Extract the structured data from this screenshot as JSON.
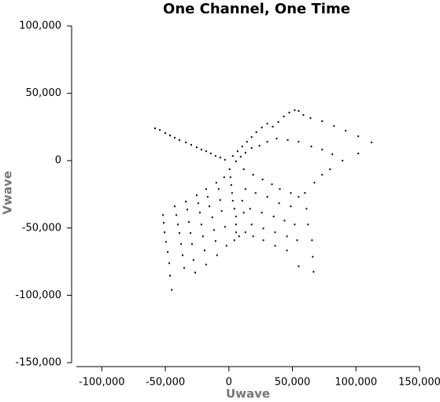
{
  "chart_data": {
    "type": "scatter",
    "title": "One Channel, One Time",
    "x_label": "Uwave",
    "y_label": "Vwave",
    "color": "#000000",
    "xlim": [
      -120000,
      150000
    ],
    "ylim": [
      -150000,
      100000
    ],
    "xticks": [
      {
        "value": -100000,
        "label": "-100,000"
      },
      {
        "value": -50000,
        "label": "-50,000"
      },
      0,
      {
        "value": 50000,
        "label": "50,000"
      },
      {
        "value": 100000,
        "label": "100,000"
      },
      {
        "value": 150000,
        "label": "150,000"
      }
    ],
    "yticks": [
      {
        "value": -150000,
        "label": "-150,000"
      },
      {
        "value": -100000,
        "label": "-100,000"
      },
      {
        "value": -50000,
        "label": "-50,000"
      },
      0,
      {
        "value": 50000,
        "label": "50,000"
      },
      {
        "value": 100000,
        "label": "100,000"
      }
    ],
    "x": [
      -58000,
      -54300,
      -50000,
      -46300,
      -42600,
      -38900,
      -33900,
      -29600,
      -25300,
      -21600,
      -17900,
      -14200,
      -10500,
      -6800,
      -3100,
      3100,
      6800,
      10500,
      14200,
      17900,
      21600,
      25900,
      30200,
      34500,
      38900,
      43200,
      47500,
      51800,
      54900,
      58600,
      64200,
      73400,
      82700,
      91900,
      101800,
      112300,
      5600,
      9300,
      13000,
      17900,
      24100,
      30200,
      37600,
      46300,
      54900,
      64800,
      73400,
      81400,
      89400,
      101800,
      600,
      1200,
      1900,
      2500,
      3100,
      4300,
      5600,
      5600,
      5600,
      4300,
      8000,
      13000,
      19100,
      27100,
      36400,
      45700,
      54900,
      66000,
      65400,
      62300,
      61100,
      59800,
      67300,
      73400,
      79600,
      66600,
      11700,
      19100,
      26500,
      33900,
      40100,
      48700,
      54900,
      13000,
      21000,
      30200,
      39500,
      48700,
      16700,
      25900,
      35200,
      43800,
      51800,
      17900,
      27100,
      36400,
      45700,
      53700,
      11700,
      10500,
      -51800,
      -51200,
      -50600,
      -49400,
      -48100,
      -46900,
      -46300,
      -45000,
      -42600,
      -41300,
      -40100,
      -38900,
      -37600,
      -36400,
      -35200,
      -33900,
      -32700,
      -31500,
      -30200,
      -29000,
      -27800,
      -26500,
      -25300,
      -24100,
      -22800,
      -21600,
      -20400,
      -19100,
      -17900,
      -17900,
      -16700,
      -15400,
      -13000,
      -11700,
      -10500,
      -9300,
      -9900,
      -8000,
      -6800,
      -5600,
      -3100,
      -1900,
      -3700
    ],
    "values": [
      24000,
      22800,
      20500,
      18700,
      17000,
      15200,
      13500,
      11700,
      9900,
      8200,
      7000,
      5300,
      3500,
      2300,
      600,
      3500,
      7000,
      10500,
      14000,
      17500,
      21100,
      24600,
      27500,
      25200,
      28700,
      32800,
      35700,
      37400,
      36900,
      33900,
      31600,
      29300,
      25700,
      22200,
      18100,
      13500,
      -600,
      2900,
      5900,
      9400,
      11100,
      14000,
      16400,
      15200,
      14000,
      10500,
      8200,
      4700,
      0,
      5300,
      -6400,
      -12300,
      -18100,
      -24000,
      -29800,
      -35700,
      -41500,
      -47400,
      -53200,
      -59100,
      -56200,
      -53200,
      -56200,
      -59100,
      -63200,
      -66700,
      -78400,
      -71400,
      -59100,
      -47400,
      -35700,
      -24000,
      -16400,
      -10500,
      -6400,
      -82500,
      -6400,
      -10500,
      -14000,
      -17600,
      -21100,
      -24000,
      -26900,
      -21100,
      -24000,
      -26900,
      -31600,
      -33900,
      -35700,
      -38600,
      -41500,
      -44500,
      -47400,
      -47400,
      -50300,
      -53200,
      -56200,
      -59100,
      -38600,
      -29800,
      -40400,
      -46200,
      -53200,
      -60300,
      -67900,
      -76100,
      -85400,
      -95900,
      -33900,
      -40400,
      -47400,
      -53800,
      -62000,
      -70200,
      -79600,
      -30400,
      -36300,
      -45600,
      -53800,
      -62000,
      -73700,
      -83100,
      -25700,
      -31600,
      -38600,
      -47400,
      -56200,
      -66700,
      -77200,
      -21100,
      -26900,
      -33900,
      -42100,
      -51500,
      -59700,
      -70200,
      -16400,
      -21100,
      -29300,
      -37400,
      -49100,
      -63200,
      -12300
    ]
  }
}
